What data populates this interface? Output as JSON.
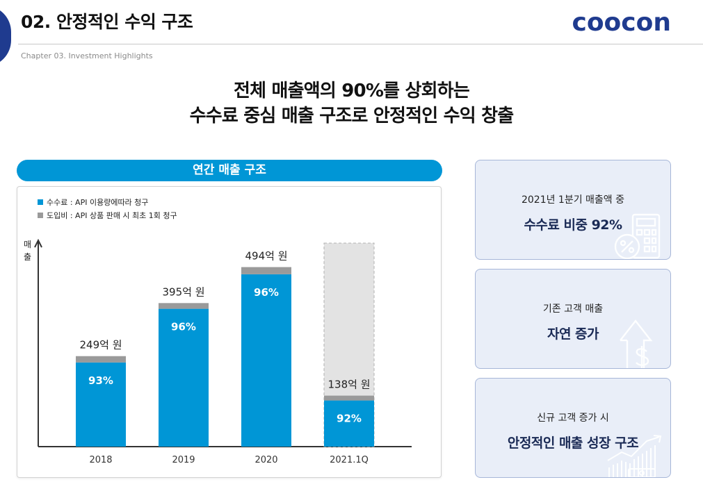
{
  "header": {
    "title": "02. 안정적인 수익 구조",
    "logo_text": "coocon",
    "chapter": "Chapter 03. Investment Highlights"
  },
  "headline": {
    "line1": "전체 매출액의 90%를 상회하는",
    "line2": "수수료 중심 매출 구조로 안정적인 수익 창출"
  },
  "chart_panel": {
    "header": "연간 매출 구조",
    "legend": [
      {
        "label": "수수료 : API 이용량에따라 청구",
        "color": "#0096d6"
      },
      {
        "label": "도입비 : API 상품 판매 시 최초 1회 청구",
        "color": "#9a9a9a"
      }
    ],
    "ylabel": "매출"
  },
  "chart_data": {
    "type": "bar",
    "stacked": true,
    "categories": [
      "2018",
      "2019",
      "2020",
      "2021.1Q"
    ],
    "totals": [
      249,
      395,
      494,
      138
    ],
    "total_labels": [
      "249억 원",
      "395억 원",
      "494억 원",
      "138억 원"
    ],
    "fee_share_labels": [
      "93%",
      "96%",
      "96%",
      "92%"
    ],
    "series": [
      {
        "name": "수수료",
        "share": [
          0.93,
          0.96,
          0.96,
          0.92
        ],
        "color": "#0096d6"
      },
      {
        "name": "도입비",
        "share": [
          0.07,
          0.04,
          0.04,
          0.08
        ],
        "color": "#9a9a9a"
      }
    ],
    "projected_placeholder": {
      "category": "2021.1Q",
      "value": 560
    },
    "ylim": [
      0,
      560
    ],
    "xlabel": "",
    "ylabel": "매출"
  },
  "cards": [
    {
      "caption": "2021년 1분기 매출액 중",
      "headline": "수수료 비중 92%",
      "icon": "calculator-percent-icon"
    },
    {
      "caption": "기존 고객 매출",
      "headline": "자연 증가",
      "icon": "dollar-up-arrow-icon"
    },
    {
      "caption": "신규 고객 증가 시",
      "headline": "안정적인 매출 성장 구조",
      "icon": "growth-chart-icon"
    }
  ],
  "colors": {
    "accent": "#0096d6",
    "brand": "#1f3b8f",
    "gray_bar": "#9a9a9a",
    "card_bg": "#e9eef8",
    "card_border": "#a6b6d8"
  }
}
